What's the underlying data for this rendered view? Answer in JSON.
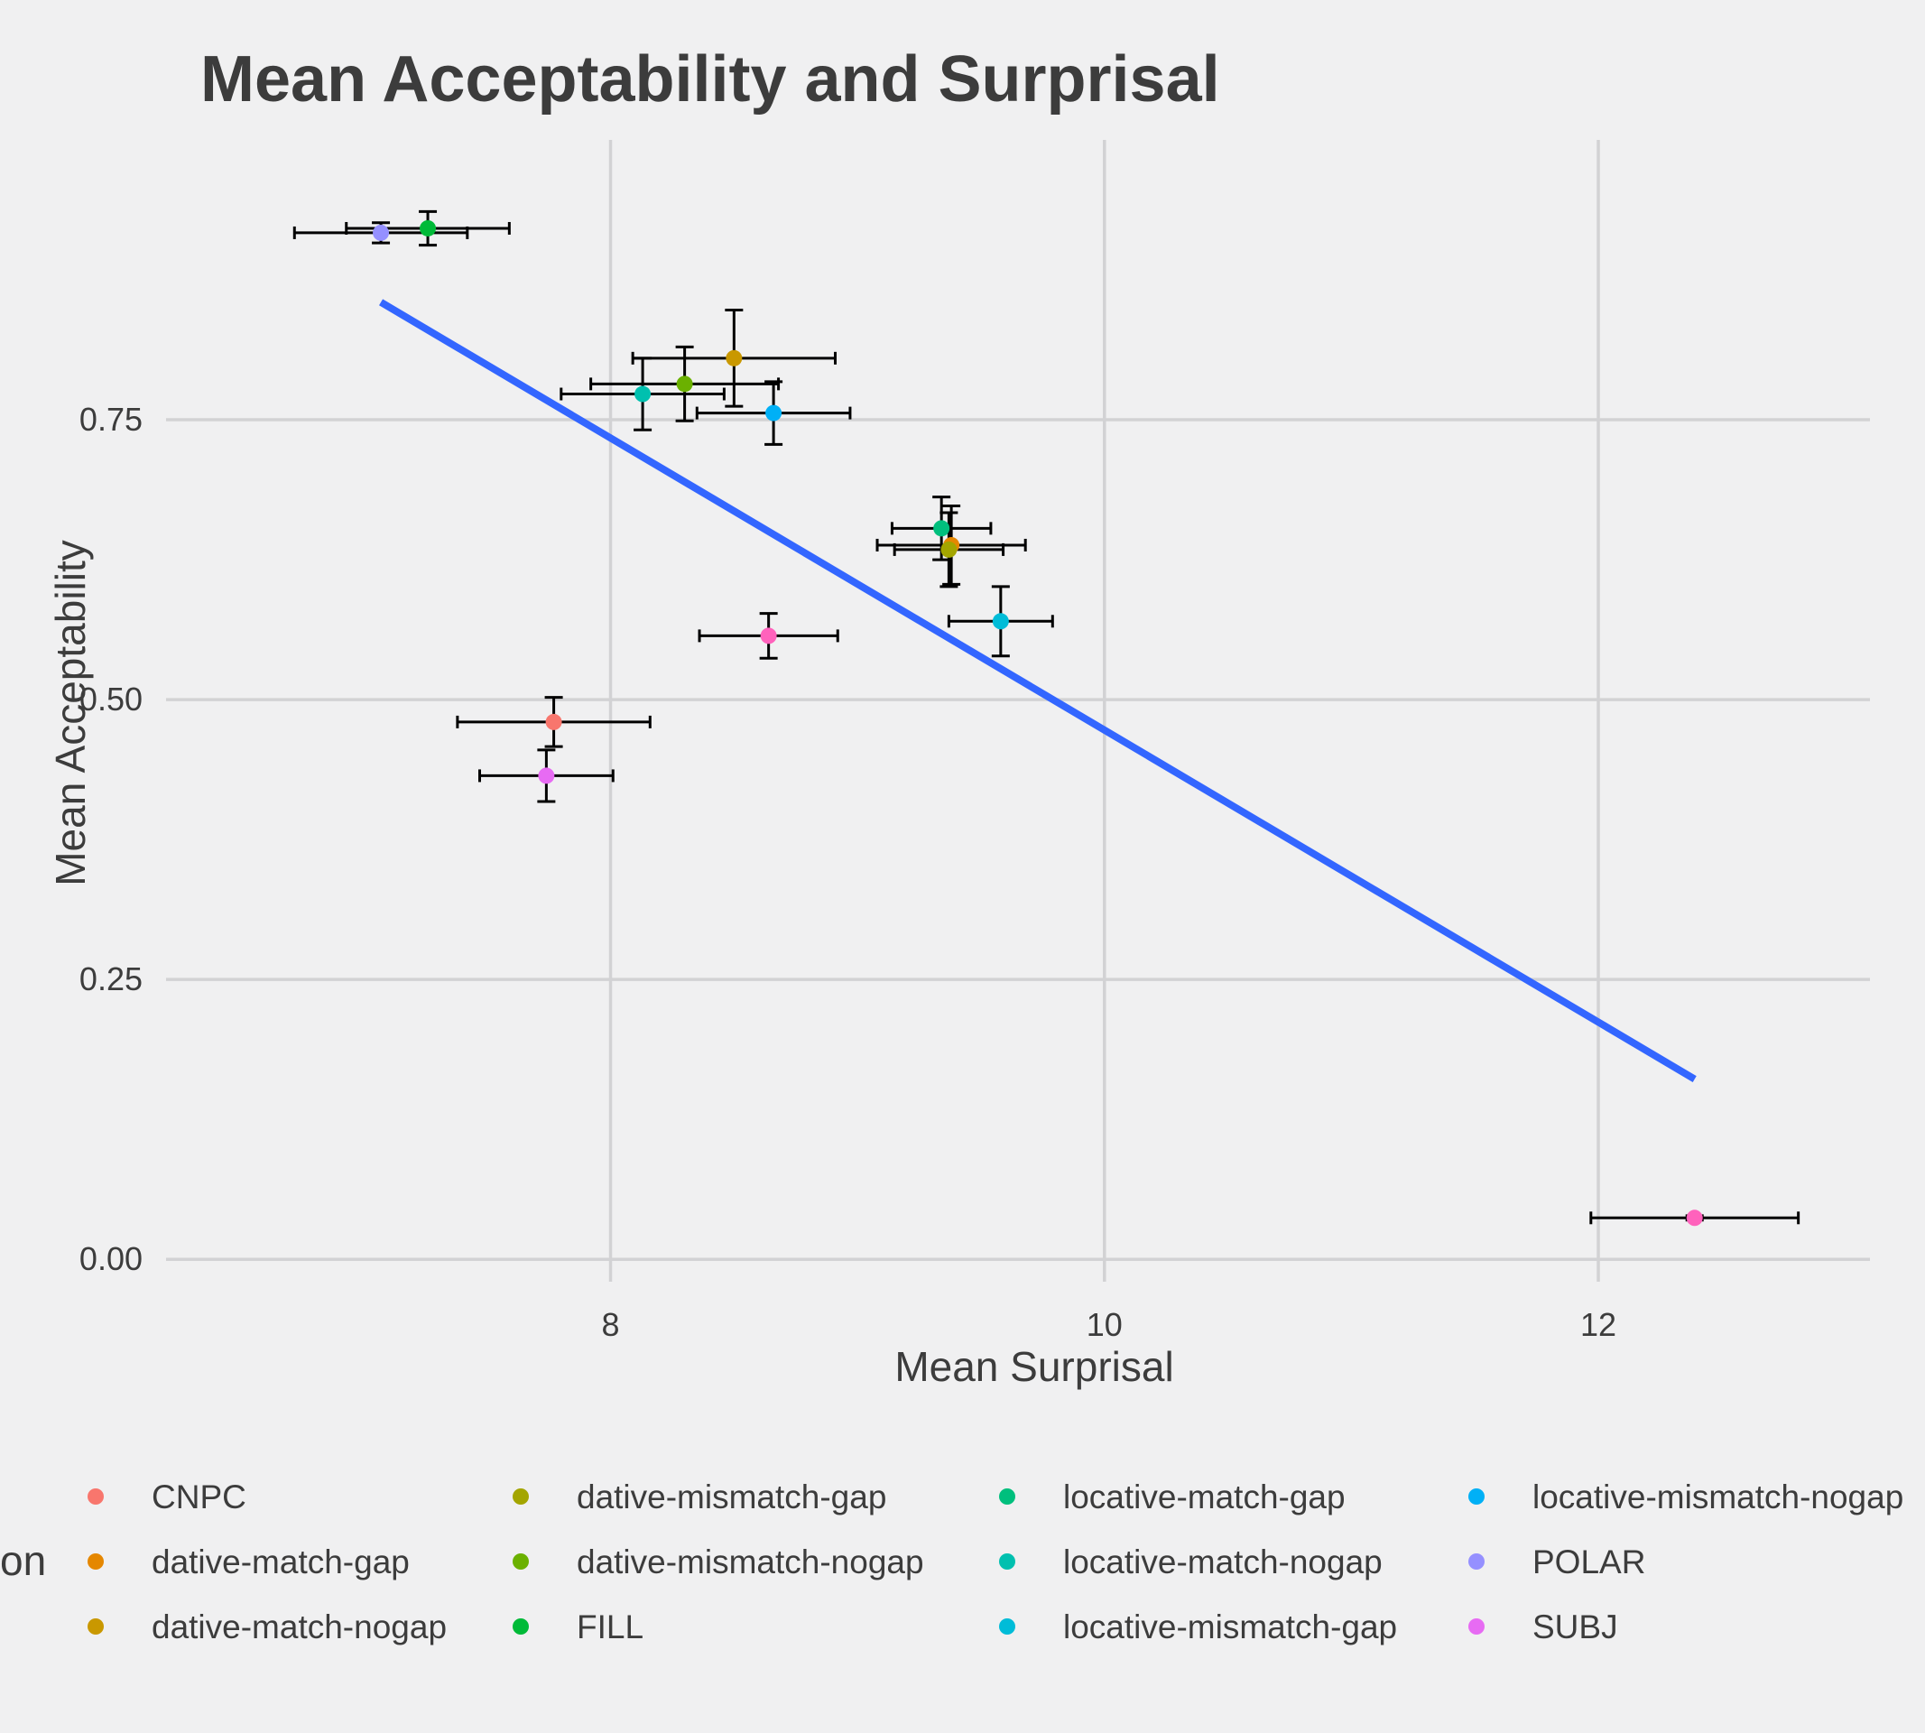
{
  "chart_data": {
    "type": "scatter",
    "title": "Mean Acceptability and Surprisal",
    "xlabel": "Mean Surprisal",
    "ylabel": "Mean Acceptability",
    "xlim": [
      6.2,
      13.1
    ],
    "ylim": [
      -0.02,
      1.0
    ],
    "x_ticks": [
      8,
      10,
      12
    ],
    "x_tick_labels": [
      "8",
      "10",
      "12"
    ],
    "y_ticks": [
      0,
      0.25,
      0.5,
      0.75
    ],
    "y_tick_labels": [
      "0.00",
      "0.25",
      "0.50",
      "0.75"
    ],
    "grid": true,
    "legend_position": "bottom",
    "legend_title_visible": "on",
    "points": [
      {
        "series": "CNPC",
        "x": 7.77,
        "y": 0.48,
        "xerr": 0.39,
        "yerr": 0.022,
        "color": "#F8766D"
      },
      {
        "series": "dative-match-gap",
        "x": 9.38,
        "y": 0.638,
        "xerr": 0.3,
        "yerr": 0.035,
        "color": "#E58700"
      },
      {
        "series": "dative-match-nogap",
        "x": 8.5,
        "y": 0.805,
        "xerr": 0.41,
        "yerr": 0.043,
        "color": "#C99800"
      },
      {
        "series": "dative-mismatch-gap",
        "x": 9.37,
        "y": 0.634,
        "xerr": 0.22,
        "yerr": 0.033,
        "color": "#A3A500"
      },
      {
        "series": "dative-mismatch-nogap",
        "x": 8.3,
        "y": 0.782,
        "xerr": 0.38,
        "yerr": 0.033,
        "color": "#6BB100"
      },
      {
        "series": "FILL",
        "x": 7.26,
        "y": 0.921,
        "xerr": 0.33,
        "yerr": 0.015,
        "color": "#00BA38"
      },
      {
        "series": "locative-match-gap",
        "x": 9.34,
        "y": 0.653,
        "xerr": 0.2,
        "yerr": 0.028,
        "color": "#00BF7D"
      },
      {
        "series": "locative-match-nogap",
        "x": 8.13,
        "y": 0.773,
        "xerr": 0.33,
        "yerr": 0.032,
        "color": "#00C0AF"
      },
      {
        "series": "locative-mismatch-gap",
        "x": 9.58,
        "y": 0.57,
        "xerr": 0.21,
        "yerr": 0.031,
        "color": "#00BCD8"
      },
      {
        "series": "locative-mismatch-nogap",
        "x": 8.66,
        "y": 0.756,
        "xerr": 0.31,
        "yerr": 0.028,
        "color": "#00B0F6"
      },
      {
        "series": "POLAR",
        "x": 7.07,
        "y": 0.917,
        "xerr": 0.35,
        "yerr": 0.009,
        "color": "#9590FF"
      },
      {
        "series": "SUBJ",
        "x": 7.74,
        "y": 0.432,
        "xerr": 0.27,
        "yerr": 0.023,
        "color": "#E76BF3"
      },
      {
        "series": "",
        "x": 8.64,
        "y": 0.557,
        "xerr": 0.28,
        "yerr": 0.02,
        "color": "#FF62BC"
      },
      {
        "series": "",
        "x": 12.39,
        "y": 0.037,
        "xerr": 0.42,
        "yerr": 0.002,
        "color": "#FF62BC"
      }
    ],
    "fit_line": {
      "x": [
        7.07,
        12.39
      ],
      "y": [
        0.855,
        0.161
      ],
      "color": "#3366FF"
    }
  },
  "legend": {
    "title": "on",
    "columns": [
      [
        {
          "label": "CNPC",
          "color": "#F8766D"
        },
        {
          "label": "dative-match-gap",
          "color": "#E58700"
        },
        {
          "label": "dative-match-nogap",
          "color": "#C99800"
        }
      ],
      [
        {
          "label": "dative-mismatch-gap",
          "color": "#A3A500"
        },
        {
          "label": "dative-mismatch-nogap",
          "color": "#6BB100"
        },
        {
          "label": "FILL",
          "color": "#00BA38"
        }
      ],
      [
        {
          "label": "locative-match-gap",
          "color": "#00BF7D"
        },
        {
          "label": "locative-match-nogap",
          "color": "#00C0AF"
        },
        {
          "label": "locative-mismatch-gap",
          "color": "#00BCD8"
        }
      ],
      [
        {
          "label": "locative-mismatch-nogap",
          "color": "#00B0F6"
        },
        {
          "label": "POLAR",
          "color": "#9590FF"
        },
        {
          "label": "SUBJ",
          "color": "#E76BF3"
        }
      ]
    ]
  }
}
